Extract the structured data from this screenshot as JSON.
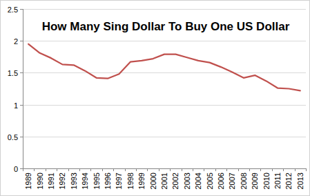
{
  "chart_data": {
    "type": "line",
    "title": "How Many Sing Dollar To Buy One US Dollar",
    "categories": [
      "1989",
      "1990",
      "1991",
      "1992",
      "1993",
      "1994",
      "1995",
      "1996",
      "1997",
      "1998",
      "1999",
      "2000",
      "2001",
      "2002",
      "2003",
      "2004",
      "2005",
      "2006",
      "2007",
      "2008",
      "2009",
      "2010",
      "2011",
      "2012",
      "2013"
    ],
    "values": [
      1.95,
      1.81,
      1.73,
      1.63,
      1.62,
      1.53,
      1.42,
      1.41,
      1.48,
      1.67,
      1.69,
      1.72,
      1.79,
      1.79,
      1.74,
      1.69,
      1.66,
      1.59,
      1.51,
      1.42,
      1.46,
      1.37,
      1.26,
      1.25,
      1.22
    ],
    "color": "#c0504d",
    "ylim": [
      0,
      2.5
    ],
    "yticks": [
      0,
      0.5,
      1,
      1.5,
      2,
      2.5
    ],
    "grid": true
  }
}
